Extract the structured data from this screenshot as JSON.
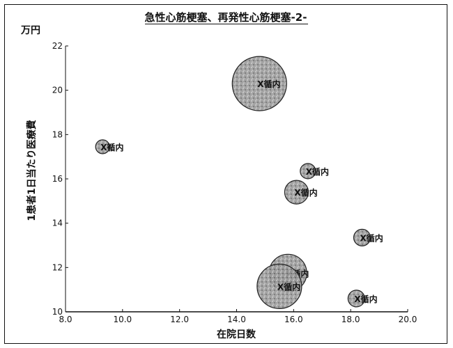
{
  "chart_data": {
    "type": "bubble",
    "title": "急性心筋梗塞、再発性心筋梗塞-2-",
    "unit_label": "万円",
    "xlabel": "在院日数",
    "ylabel": "1患者1日当たり医療費",
    "xlim": [
      8.0,
      20.0
    ],
    "ylim": [
      10,
      22
    ],
    "x_ticks": [
      "8.0",
      "10.0",
      "12.0",
      "14.0",
      "16.0",
      "18.0",
      "20.0"
    ],
    "y_ticks": [
      "10",
      "12",
      "14",
      "16",
      "18",
      "20",
      "22"
    ],
    "grid": false,
    "points": [
      {
        "x": 14.8,
        "y": 20.3,
        "size": 39,
        "label": "X循内"
      },
      {
        "x": 9.3,
        "y": 17.45,
        "size": 10,
        "label": "X循内"
      },
      {
        "x": 16.5,
        "y": 16.35,
        "size": 11,
        "label": "X循内"
      },
      {
        "x": 16.1,
        "y": 15.4,
        "size": 17,
        "label": "X循内"
      },
      {
        "x": 18.4,
        "y": 13.35,
        "size": 12,
        "label": "X循内"
      },
      {
        "x": 15.8,
        "y": 11.75,
        "size": 27,
        "label": "X循内"
      },
      {
        "x": 15.5,
        "y": 11.15,
        "size": 32,
        "label": "X循内"
      },
      {
        "x": 18.2,
        "y": 10.6,
        "size": 12,
        "label": "X循内"
      }
    ]
  }
}
